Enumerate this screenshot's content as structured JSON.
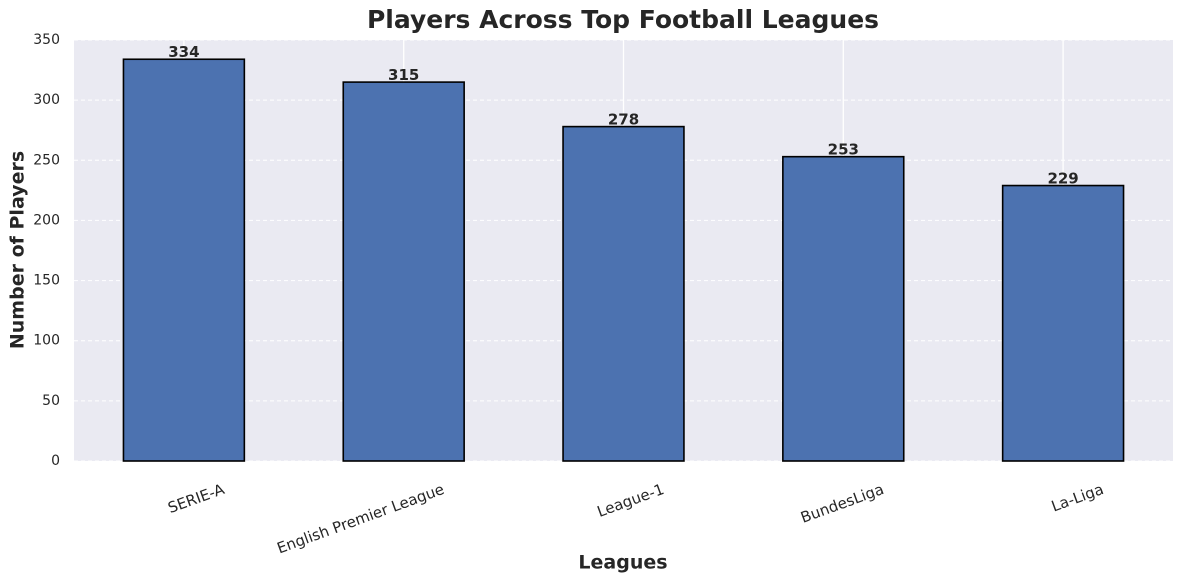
{
  "chart_data": {
    "type": "bar",
    "title": "Players Across Top Football Leagues",
    "x_label": "Leagues",
    "y_label": "Number of Players",
    "categories": [
      "SERIE-A",
      "English Premier League",
      "League-1",
      "BundesLiga",
      "La-Liga"
    ],
    "values": [
      334,
      315,
      278,
      253,
      229
    ],
    "color": "#4c72b0",
    "ylim": [
      0,
      350
    ],
    "yticks": [
      0,
      50,
      100,
      150,
      200,
      250,
      300,
      350
    ],
    "grid": true
  }
}
